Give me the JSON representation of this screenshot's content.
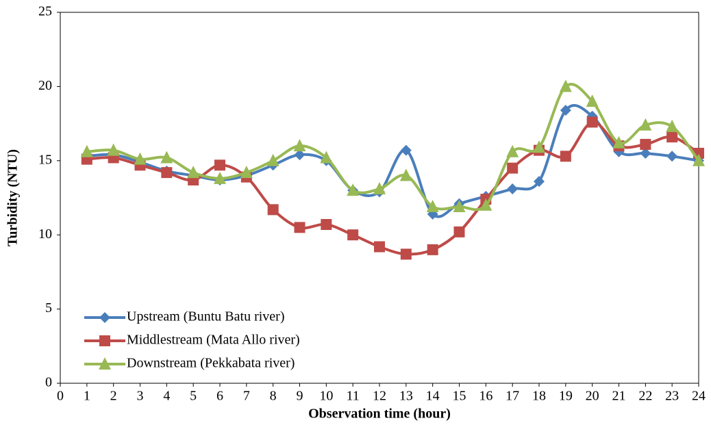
{
  "chart_data": {
    "type": "line",
    "x_label": "Observation time (hour)",
    "y_label": "Turbidity (NTU)",
    "x": [
      1,
      2,
      3,
      4,
      5,
      6,
      7,
      8,
      9,
      10,
      11,
      12,
      13,
      14,
      15,
      16,
      17,
      18,
      19,
      20,
      21,
      22,
      23,
      24
    ],
    "xlim": [
      0,
      24
    ],
    "xticks": [
      0,
      1,
      2,
      3,
      4,
      5,
      6,
      7,
      8,
      9,
      10,
      11,
      12,
      13,
      14,
      15,
      16,
      17,
      18,
      19,
      20,
      21,
      22,
      23,
      24
    ],
    "ylim": [
      0,
      25
    ],
    "yticks": [
      0,
      5,
      10,
      15,
      20,
      25
    ],
    "smooth": true,
    "legend": "lower left",
    "series": [
      {
        "name": "Upstream (Buntu Batu river)",
        "color": "#4a7ebb",
        "marker": "diamond",
        "values": [
          15.3,
          15.4,
          14.9,
          14.3,
          14.0,
          13.7,
          14.0,
          14.7,
          15.4,
          15.0,
          13.0,
          12.9,
          15.7,
          11.4,
          12.1,
          12.6,
          13.1,
          13.6,
          18.4,
          18.0,
          15.6,
          15.5,
          15.3,
          15.0
        ]
      },
      {
        "name": "Middlestream (Mata Allo river)",
        "color": "#be4b48",
        "marker": "square",
        "values": [
          15.1,
          15.2,
          14.7,
          14.2,
          13.7,
          14.7,
          13.9,
          11.7,
          10.5,
          10.7,
          10.0,
          9.2,
          8.7,
          9.0,
          10.2,
          12.4,
          14.5,
          15.7,
          15.3,
          17.6,
          16.0,
          16.1,
          16.6,
          15.5
        ]
      },
      {
        "name": "Downstream (Pekkabata river)",
        "color": "#98b954",
        "marker": "triangle",
        "values": [
          15.6,
          15.7,
          15.1,
          15.2,
          14.2,
          13.8,
          14.2,
          15.0,
          16.0,
          15.2,
          13.0,
          13.1,
          14.0,
          11.9,
          11.9,
          12.0,
          15.6,
          15.9,
          20.0,
          19.0,
          16.2,
          17.4,
          17.3,
          15.0
        ]
      }
    ]
  }
}
